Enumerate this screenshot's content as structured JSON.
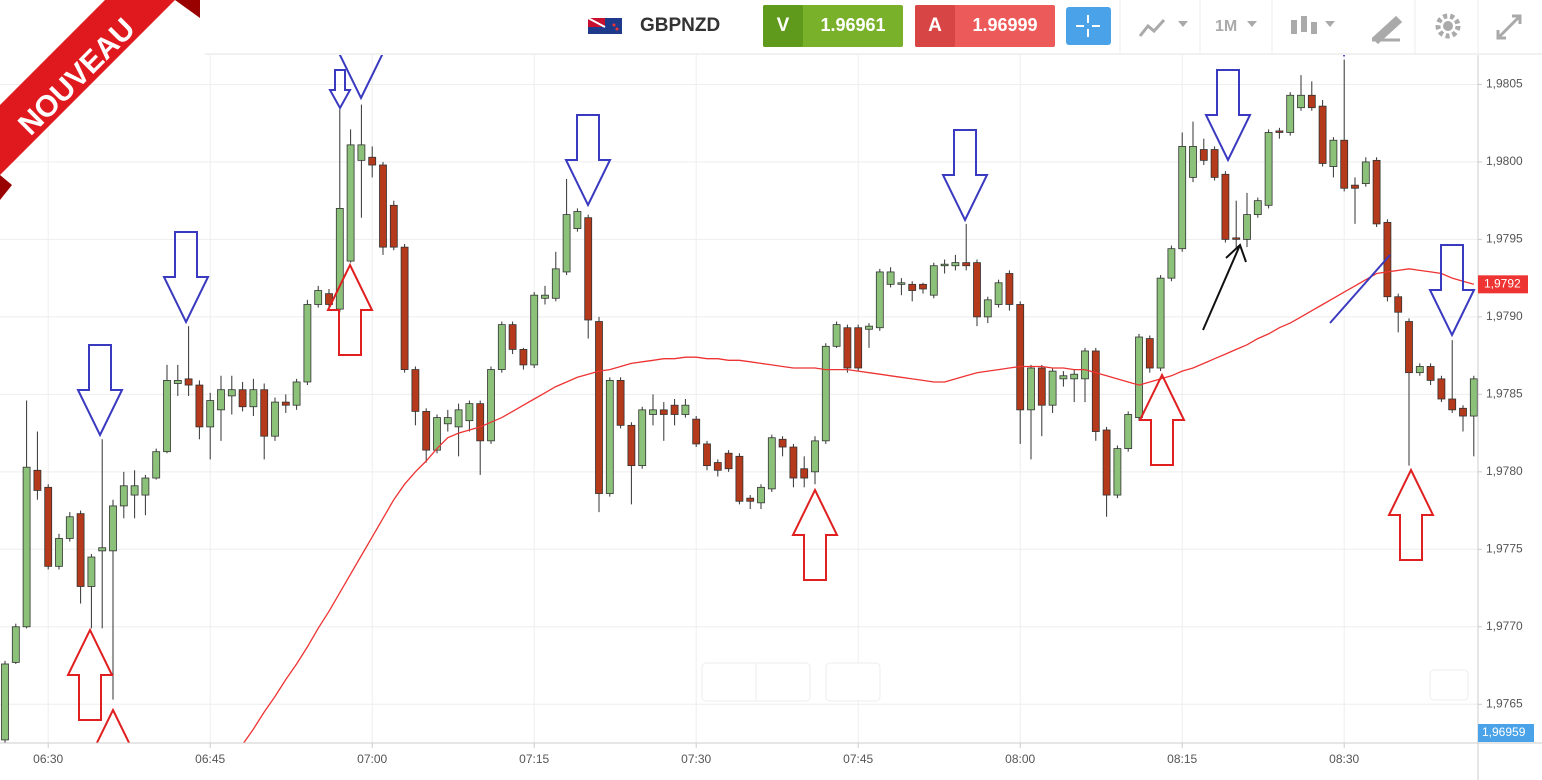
{
  "badge": "NOUVEAU",
  "header": {
    "symbol": "GBPNZD",
    "sell_label": "V",
    "sell_price": "1.96961",
    "buy_label": "A",
    "buy_price": "1.96999",
    "timeframe": "1M"
  },
  "chart_data": {
    "type": "candlestick",
    "categories": [
      null,
      null,
      null,
      null,
      "06:30",
      null,
      null,
      null,
      null,
      null,
      null,
      null,
      null,
      null,
      null,
      null,
      null,
      null,
      null,
      "06:45",
      null,
      null,
      null,
      null,
      null,
      null,
      null,
      null,
      null,
      null,
      null,
      null,
      null,
      null,
      "07:00",
      null,
      null,
      null,
      null,
      null,
      null,
      null,
      null,
      null,
      null,
      null,
      null,
      null,
      null,
      "07:15",
      null,
      null,
      null,
      null,
      null,
      null,
      null,
      null,
      null,
      null,
      null,
      null,
      null,
      null,
      "07:30",
      null,
      null,
      null,
      null,
      null,
      null,
      null,
      null,
      null,
      null,
      null,
      null,
      null,
      null,
      "07:45",
      null,
      null,
      null,
      null,
      null,
      null,
      null,
      null,
      null,
      null,
      null,
      null,
      null,
      null,
      "08:00",
      null,
      null,
      null,
      null,
      null,
      null,
      null,
      null,
      null,
      null,
      null,
      null,
      null,
      null,
      "08:15",
      null,
      null,
      null,
      null,
      null,
      null,
      null,
      null,
      null,
      null,
      null,
      null,
      null,
      null,
      "08:30",
      null,
      null,
      null,
      null,
      null,
      null,
      null,
      null,
      null,
      null,
      null,
      null
    ],
    "open": [
      1.97627,
      1.97677,
      1.977,
      1.97801,
      1.9779,
      1.97739,
      1.97757,
      1.97773,
      1.97726,
      1.97749,
      1.97749,
      1.97778,
      1.97785,
      1.97785,
      1.97796,
      1.97813,
      1.97857,
      1.9786,
      1.97856,
      1.97829,
      1.9784,
      1.97849,
      1.97853,
      1.97842,
      1.97853,
      1.97823,
      1.97845,
      1.97843,
      1.97858,
      1.97908,
      1.97915,
      1.97905,
      1.97936,
      1.98001,
      1.98003,
      1.97998,
      1.97972,
      1.97945,
      1.97866,
      1.97839,
      1.97814,
      1.97831,
      1.97829,
      1.97833,
      1.97844,
      1.9782,
      1.97866,
      1.97895,
      1.97879,
      1.97869,
      1.97912,
      1.97912,
      1.97929,
      1.97957,
      1.97964,
      1.97897,
      1.97786,
      1.97859,
      1.9783,
      1.97804,
      1.97837,
      1.9784,
      1.97843,
      1.97837,
      1.97834,
      1.97818,
      1.97806,
      1.97812,
      1.9781,
      1.97783,
      1.9778,
      1.97789,
      1.97821,
      1.97816,
      1.97802,
      1.978,
      1.9782,
      1.97881,
      1.97893,
      1.97893,
      1.97892,
      1.97893,
      1.97921,
      1.97921,
      1.97921,
      1.97921,
      1.97914,
      1.97933,
      1.97933,
      1.97935,
      1.97935,
      1.979,
      1.97908,
      1.97928,
      1.97908,
      1.9784,
      1.97867,
      1.97843,
      1.9786,
      1.9786,
      1.9786,
      1.97878,
      1.97827,
      1.97785,
      1.97815,
      1.97835,
      1.97886,
      1.97867,
      1.97925,
      1.97944,
      1.9799,
      1.98008,
      1.98008,
      1.97992,
      1.97951,
      1.9795,
      1.97966,
      1.97972,
      1.9802,
      1.98019,
      1.98035,
      1.98043,
      1.98036,
      1.97997,
      1.98014,
      1.97985,
      1.97986,
      1.98001,
      1.97961,
      1.97913,
      1.97897,
      1.97864,
      1.97868,
      1.9786,
      1.97847,
      1.97841,
      1.97836
    ],
    "high": [
      1.97678,
      1.97702,
      1.97846,
      1.97826,
      1.97792,
      1.9776,
      1.97774,
      1.97775,
      1.97747,
      1.97821,
      1.97782,
      1.978,
      1.97801,
      1.97798,
      1.97815,
      1.97869,
      1.97869,
      1.97894,
      1.97859,
      1.97851,
      1.97862,
      1.97862,
      1.97858,
      1.9786,
      1.97857,
      1.97848,
      1.9785,
      1.9786,
      1.97911,
      1.9792,
      1.97918,
      1.98034,
      1.98021,
      1.98037,
      1.9801,
      1.98,
      1.97975,
      1.97947,
      1.97868,
      1.97841,
      1.97837,
      1.9784,
      1.97844,
      1.97846,
      1.97846,
      1.97868,
      1.97897,
      1.97897,
      1.9788,
      1.97916,
      1.9792,
      1.97942,
      1.97989,
      1.9797,
      1.97966,
      1.979,
      1.97861,
      1.97861,
      1.97832,
      1.97842,
      1.9785,
      1.97845,
      1.97847,
      1.97847,
      1.97836,
      1.9782,
      1.97808,
      1.97814,
      1.97812,
      1.97785,
      1.97792,
      1.97824,
      1.97823,
      1.97818,
      1.9781,
      1.97823,
      1.97883,
      1.97897,
      1.97895,
      1.97895,
      1.97896,
      1.97931,
      1.97932,
      1.97925,
      1.97923,
      1.97922,
      1.97935,
      1.97937,
      1.9794,
      1.9796,
      1.97937,
      1.97913,
      1.97924,
      1.9793,
      1.9791,
      1.97869,
      1.97869,
      1.97867,
      1.97865,
      1.97866,
      1.9788,
      1.9788,
      1.97829,
      1.97817,
      1.97839,
      1.97889,
      1.97888,
      1.97927,
      1.97946,
      1.98019,
      1.98026,
      1.98015,
      1.9801,
      1.97994,
      1.97975,
      1.9798,
      1.97977,
      1.98021,
      1.98022,
      1.98045,
      1.98056,
      1.98052,
      1.9804,
      1.98016,
      1.98066,
      1.9799,
      1.98003,
      1.98003,
      1.97963,
      1.97915,
      1.97899,
      1.9787,
      1.9787,
      1.97862,
      1.97885,
      1.97843,
      1.97862
    ],
    "low": [
      1.97625,
      1.97676,
      1.97699,
      1.97782,
      1.97737,
      1.97737,
      1.97755,
      1.97715,
      1.97699,
      1.97699,
      1.97653,
      1.9777,
      1.9777,
      1.97772,
      1.97795,
      1.97812,
      1.97849,
      1.97849,
      1.97821,
      1.97808,
      1.9782,
      1.97837,
      1.97839,
      1.97836,
      1.97808,
      1.9782,
      1.97838,
      1.9784,
      1.97856,
      1.97906,
      1.97906,
      1.97903,
      1.97935,
      1.97964,
      1.9799,
      1.9794,
      1.97943,
      1.97864,
      1.9783,
      1.97806,
      1.97812,
      1.97826,
      1.9781,
      1.97826,
      1.97798,
      1.97818,
      1.97864,
      1.97876,
      1.97866,
      1.97867,
      1.97908,
      1.9791,
      1.97927,
      1.97955,
      1.97886,
      1.97774,
      1.97784,
      1.97828,
      1.97779,
      1.97802,
      1.9783,
      1.9782,
      1.9783,
      1.97835,
      1.97816,
      1.97801,
      1.97797,
      1.978,
      1.97779,
      1.97776,
      1.97776,
      1.97787,
      1.9781,
      1.9779,
      1.9779,
      1.97792,
      1.97818,
      1.9788,
      1.97864,
      1.97865,
      1.9788,
      1.97891,
      1.97919,
      1.97914,
      1.9791,
      1.97915,
      1.97912,
      1.97928,
      1.9793,
      1.9793,
      1.97894,
      1.97896,
      1.97906,
      1.97904,
      1.97818,
      1.97808,
      1.97823,
      1.97838,
      1.97855,
      1.97845,
      1.97845,
      1.9782,
      1.97771,
      1.97783,
      1.97813,
      1.97833,
      1.97864,
      1.97865,
      1.97923,
      1.97942,
      1.97987,
      1.97998,
      1.97988,
      1.97948,
      1.97944,
      1.97945,
      1.97964,
      1.9797,
      1.98015,
      1.98017,
      1.98033,
      1.98033,
      1.97997,
      1.9799,
      1.97981,
      1.9796,
      1.97984,
      1.97958,
      1.9791,
      1.9789,
      1.97804,
      1.97862,
      1.97856,
      1.97845,
      1.97838,
      1.97826,
      1.9781
    ],
    "close": [
      1.97676,
      1.977,
      1.97803,
      1.97788,
      1.97739,
      1.97757,
      1.97771,
      1.97726,
      1.97745,
      1.97751,
      1.97778,
      1.97791,
      1.97791,
      1.97796,
      1.97813,
      1.97859,
      1.97859,
      1.97856,
      1.97829,
      1.97846,
      1.97853,
      1.97853,
      1.97842,
      1.97853,
      1.97823,
      1.97845,
      1.97843,
      1.97858,
      1.97908,
      1.97917,
      1.97908,
      1.9797,
      1.98011,
      1.98011,
      1.97998,
      1.97945,
      1.97945,
      1.97866,
      1.97839,
      1.97814,
      1.97835,
      1.97835,
      1.9784,
      1.97844,
      1.9782,
      1.97866,
      1.97895,
      1.97879,
      1.97869,
      1.97914,
      1.97914,
      1.97931,
      1.97966,
      1.97968,
      1.97898,
      1.97786,
      1.97859,
      1.9783,
      1.97804,
      1.9784,
      1.9784,
      1.97837,
      1.97837,
      1.97843,
      1.97818,
      1.97804,
      1.97801,
      1.97802,
      1.97781,
      1.97781,
      1.9779,
      1.97822,
      1.97816,
      1.97796,
      1.97796,
      1.9782,
      1.97881,
      1.97895,
      1.97867,
      1.97867,
      1.97894,
      1.97929,
      1.97929,
      1.97922,
      1.97917,
      1.97918,
      1.97933,
      1.97934,
      1.97935,
      1.97933,
      1.979,
      1.97911,
      1.97922,
      1.97908,
      1.9784,
      1.97867,
      1.97843,
      1.97865,
      1.97862,
      1.97863,
      1.97878,
      1.97826,
      1.97785,
      1.97815,
      1.97837,
      1.97887,
      1.97867,
      1.97925,
      1.97944,
      1.9801,
      1.9801,
      1.98001,
      1.9799,
      1.9795,
      1.9795,
      1.97966,
      1.97975,
      1.98019,
      1.98019,
      1.98043,
      1.98043,
      1.98035,
      1.97999,
      1.98014,
      1.97983,
      1.97983,
      1.98,
      1.9796,
      1.97913,
      1.97903,
      1.97864,
      1.97868,
      1.97859,
      1.97847,
      1.9784,
      1.97836,
      1.9786
    ],
    "up_color": "#8cc17a",
    "down_color": "#b5391b",
    "ma": {
      "color": "#ee3333",
      "last_label": "1,9792",
      "values": [
        null,
        null,
        null,
        null,
        null,
        null,
        null,
        null,
        null,
        null,
        null,
        null,
        null,
        null,
        null,
        null,
        null,
        null,
        null,
        null,
        null,
        null,
        1.97624,
        1.97634,
        1.97645,
        1.97655,
        1.97666,
        1.97676,
        1.97687,
        1.97699,
        1.9771,
        1.97722,
        1.97734,
        1.97746,
        1.97758,
        1.9777,
        1.97782,
        1.97792,
        1.978,
        1.97807,
        1.97815,
        1.97822,
        1.97825,
        1.97827,
        1.97829,
        1.97832,
        1.97835,
        1.97839,
        1.97843,
        1.97847,
        1.97851,
        1.97855,
        1.97858,
        1.97861,
        1.97863,
        1.97865,
        1.97866,
        1.97868,
        1.9787,
        1.97871,
        1.97872,
        1.97873,
        1.97873,
        1.97874,
        1.97874,
        1.97873,
        1.97873,
        1.97872,
        1.97872,
        1.97871,
        1.9787,
        1.97869,
        1.97868,
        1.97867,
        1.97867,
        1.97867,
        1.97866,
        1.97866,
        1.97866,
        1.97865,
        1.97864,
        1.97863,
        1.97862,
        1.97861,
        1.9786,
        1.97859,
        1.97858,
        1.97858,
        1.9786,
        1.97862,
        1.97864,
        1.97865,
        1.97866,
        1.97867,
        1.97868,
        1.97868,
        1.97868,
        1.97867,
        1.97867,
        1.97866,
        1.97866,
        1.97864,
        1.97862,
        1.9786,
        1.97858,
        1.97856,
        1.97858,
        1.9786,
        1.97862,
        1.97865,
        1.97867,
        1.9787,
        1.97873,
        1.97876,
        1.97879,
        1.97882,
        1.97886,
        1.97889,
        1.97893,
        1.97896,
        1.979,
        1.97904,
        1.97908,
        1.97912,
        1.97916,
        1.9792,
        1.97924,
        1.97928,
        1.97929,
        1.9793,
        1.97931,
        1.9793,
        1.97929,
        1.97928,
        1.97925,
        1.97923,
        1.97921
      ]
    },
    "current_price": {
      "value": 1.96959,
      "label": "1,96959"
    },
    "ylim": [
      1.97625,
      1.98069
    ],
    "yticks": [
      {
        "value": 1.9765,
        "label": "1,9765"
      },
      {
        "value": 1.977,
        "label": "1,9770"
      },
      {
        "value": 1.9775,
        "label": "1,9775"
      },
      {
        "value": 1.978,
        "label": "1,9780"
      },
      {
        "value": 1.9785,
        "label": "1,9785"
      },
      {
        "value": 1.979,
        "label": "1,9790"
      },
      {
        "value": 1.9795,
        "label": "1,9795"
      },
      {
        "value": 1.98,
        "label": "1,9800"
      },
      {
        "value": 1.9805,
        "label": "1,9805"
      }
    ],
    "grid": true
  }
}
